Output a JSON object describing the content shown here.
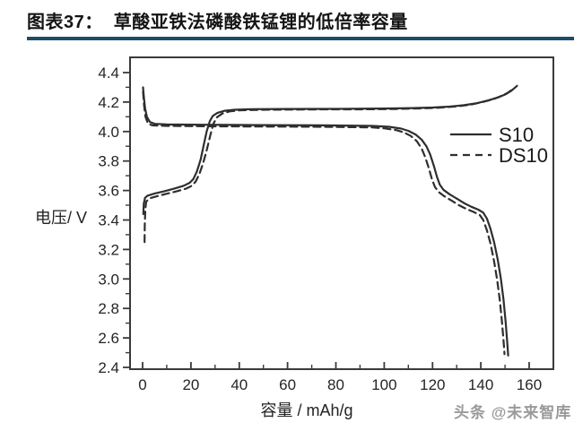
{
  "header": {
    "figure_label": "图表37：",
    "figure_title": "草酸亚铁法磷酸铁锰锂的低倍率容量",
    "underline_color": "#1b4d6b"
  },
  "watermark": "头条 @未来智库",
  "chart_data": {
    "type": "line",
    "title": "",
    "xlabel": "容量 / mAh/g",
    "ylabel": "电压/ V",
    "xlim": [
      0,
      160
    ],
    "ylim": [
      2.4,
      4.4
    ],
    "x_ticks": [
      0,
      20,
      40,
      60,
      80,
      100,
      120,
      140,
      160
    ],
    "y_ticks": [
      4.4,
      4.2,
      4.0,
      3.8,
      3.6,
      3.4,
      3.2,
      3.0,
      2.8,
      2.6,
      2.4
    ],
    "x_minor_step": 10,
    "y_minor_step": 0.1,
    "grid": false,
    "line_color": "#2e2e2e",
    "legend_position": "right-middle",
    "legend": [
      {
        "label": "S10",
        "style": "solid"
      },
      {
        "label": "DS10",
        "style": "dashed"
      }
    ],
    "series": [
      {
        "name": "S10-charge",
        "style": "solid",
        "points": [
          [
            0.3,
            3.44
          ],
          [
            0.5,
            3.51
          ],
          [
            1,
            3.55
          ],
          [
            2,
            3.565
          ],
          [
            5,
            3.58
          ],
          [
            9,
            3.595
          ],
          [
            13,
            3.612
          ],
          [
            17,
            3.632
          ],
          [
            19.5,
            3.652
          ],
          [
            21,
            3.678
          ],
          [
            22.5,
            3.73
          ],
          [
            24,
            3.81
          ],
          [
            25.3,
            3.91
          ],
          [
            26.5,
            4.0
          ],
          [
            27.8,
            4.07
          ],
          [
            29,
            4.105
          ],
          [
            31,
            4.127
          ],
          [
            34,
            4.141
          ],
          [
            38,
            4.148
          ],
          [
            45,
            4.152
          ],
          [
            60,
            4.153
          ],
          [
            80,
            4.154
          ],
          [
            100,
            4.156
          ],
          [
            112,
            4.159
          ],
          [
            120,
            4.163
          ],
          [
            127,
            4.169
          ],
          [
            133,
            4.179
          ],
          [
            138,
            4.191
          ],
          [
            143,
            4.211
          ],
          [
            147,
            4.231
          ],
          [
            150,
            4.251
          ],
          [
            152.5,
            4.275
          ],
          [
            155,
            4.31
          ]
        ]
      },
      {
        "name": "S10-discharge",
        "style": "solid",
        "points": [
          [
            0.2,
            4.3
          ],
          [
            0.5,
            4.24
          ],
          [
            1,
            4.16
          ],
          [
            1.8,
            4.1
          ],
          [
            3,
            4.065
          ],
          [
            5,
            4.052
          ],
          [
            10,
            4.048
          ],
          [
            25,
            4.046
          ],
          [
            50,
            4.044
          ],
          [
            75,
            4.042
          ],
          [
            95,
            4.038
          ],
          [
            102,
            4.032
          ],
          [
            107,
            4.02
          ],
          [
            110,
            4.005
          ],
          [
            113,
            3.98
          ],
          [
            115.5,
            3.945
          ],
          [
            117.5,
            3.9
          ],
          [
            119,
            3.845
          ],
          [
            120.5,
            3.77
          ],
          [
            121.8,
            3.695
          ],
          [
            123,
            3.64
          ],
          [
            124.5,
            3.605
          ],
          [
            127,
            3.575
          ],
          [
            130,
            3.545
          ],
          [
            133,
            3.515
          ],
          [
            136,
            3.49
          ],
          [
            139,
            3.47
          ],
          [
            141,
            3.45
          ],
          [
            142.5,
            3.41
          ],
          [
            144,
            3.34
          ],
          [
            145.5,
            3.25
          ],
          [
            147,
            3.13
          ],
          [
            148.3,
            3.0
          ],
          [
            149.4,
            2.86
          ],
          [
            150.3,
            2.7
          ],
          [
            151,
            2.55
          ],
          [
            151.3,
            2.48
          ]
        ]
      },
      {
        "name": "DS10-charge",
        "style": "dashed",
        "points": [
          [
            0.8,
            3.25
          ],
          [
            0.9,
            3.36
          ],
          [
            1.1,
            3.47
          ],
          [
            1.5,
            3.525
          ],
          [
            3,
            3.547
          ],
          [
            6,
            3.562
          ],
          [
            10,
            3.578
          ],
          [
            14,
            3.594
          ],
          [
            18,
            3.613
          ],
          [
            20.5,
            3.633
          ],
          [
            22,
            3.662
          ],
          [
            23.5,
            3.712
          ],
          [
            25,
            3.782
          ],
          [
            26.5,
            3.872
          ],
          [
            28,
            3.972
          ],
          [
            29.3,
            4.052
          ],
          [
            30.8,
            4.097
          ],
          [
            33,
            4.122
          ],
          [
            36,
            4.137
          ],
          [
            40,
            4.144
          ],
          [
            50,
            4.148
          ],
          [
            70,
            4.15
          ],
          [
            90,
            4.151
          ],
          [
            105,
            4.153
          ],
          [
            115,
            4.157
          ],
          [
            123,
            4.162
          ],
          [
            130,
            4.171
          ],
          [
            136,
            4.183
          ],
          [
            141,
            4.201
          ],
          [
            145,
            4.219
          ],
          [
            148,
            4.238
          ],
          [
            151,
            4.261
          ],
          [
            153.5,
            4.292
          ]
        ]
      },
      {
        "name": "DS10-discharge",
        "style": "dashed",
        "points": [
          [
            0.2,
            4.27
          ],
          [
            0.6,
            4.18
          ],
          [
            1.2,
            4.1
          ],
          [
            2.2,
            4.055
          ],
          [
            4,
            4.042
          ],
          [
            10,
            4.038
          ],
          [
            25,
            4.036
          ],
          [
            50,
            4.034
          ],
          [
            75,
            4.032
          ],
          [
            95,
            4.028
          ],
          [
            100,
            4.022
          ],
          [
            105,
            4.01
          ],
          [
            108,
            3.995
          ],
          [
            111,
            3.97
          ],
          [
            113.5,
            3.935
          ],
          [
            115.5,
            3.885
          ],
          [
            117,
            3.825
          ],
          [
            118.5,
            3.75
          ],
          [
            119.8,
            3.675
          ],
          [
            121,
            3.625
          ],
          [
            122.5,
            3.59
          ],
          [
            125,
            3.56
          ],
          [
            128,
            3.53
          ],
          [
            131,
            3.5
          ],
          [
            134,
            3.475
          ],
          [
            137,
            3.455
          ],
          [
            139.5,
            3.435
          ],
          [
            141,
            3.4
          ],
          [
            142.5,
            3.33
          ],
          [
            144,
            3.24
          ],
          [
            145.5,
            3.12
          ],
          [
            146.8,
            2.99
          ],
          [
            147.9,
            2.85
          ],
          [
            148.8,
            2.7
          ],
          [
            149.5,
            2.56
          ],
          [
            149.8,
            2.49
          ]
        ]
      }
    ]
  }
}
